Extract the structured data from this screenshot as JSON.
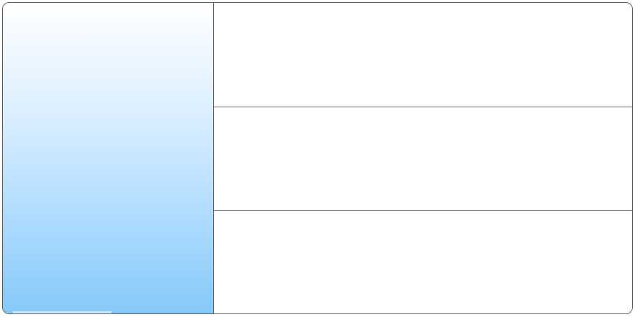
{
  "panel": {
    "gradient_top_color": "#ffffff",
    "gradient_bottom_color": "#86c9f8"
  },
  "rows": [
    {
      "text": ""
    },
    {
      "text": ""
    },
    {
      "text": ""
    }
  ]
}
